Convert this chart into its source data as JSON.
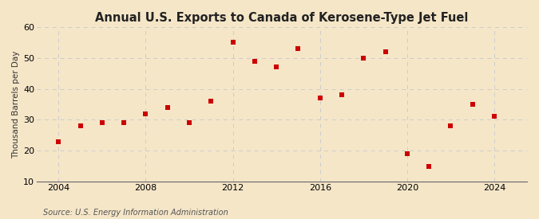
{
  "title": "Annual U.S. Exports to Canada of Kerosene-Type Jet Fuel",
  "ylabel": "Thousand Barrels per Day",
  "source": "Source: U.S. Energy Information Administration",
  "background_color": "#f5e6c8",
  "plot_bg_color": "#f5e6c8",
  "marker_color": "#cc0000",
  "years": [
    2004,
    2005,
    2006,
    2007,
    2008,
    2009,
    2010,
    2011,
    2012,
    2013,
    2014,
    2015,
    2016,
    2017,
    2018,
    2019,
    2020,
    2021,
    2022,
    2023,
    2024
  ],
  "values": [
    23,
    28,
    29,
    29,
    32,
    34,
    29,
    36,
    55,
    49,
    47,
    53,
    37,
    38,
    50,
    52,
    19,
    15,
    28,
    35,
    31
  ],
  "xlim": [
    2003,
    2025.5
  ],
  "ylim": [
    10,
    60
  ],
  "yticks": [
    10,
    20,
    30,
    40,
    50,
    60
  ],
  "xticks": [
    2004,
    2008,
    2012,
    2016,
    2020,
    2024
  ],
  "grid_color": "#cccccc",
  "title_fontsize": 10.5,
  "ylabel_fontsize": 7.5,
  "tick_fontsize": 8,
  "source_fontsize": 7
}
